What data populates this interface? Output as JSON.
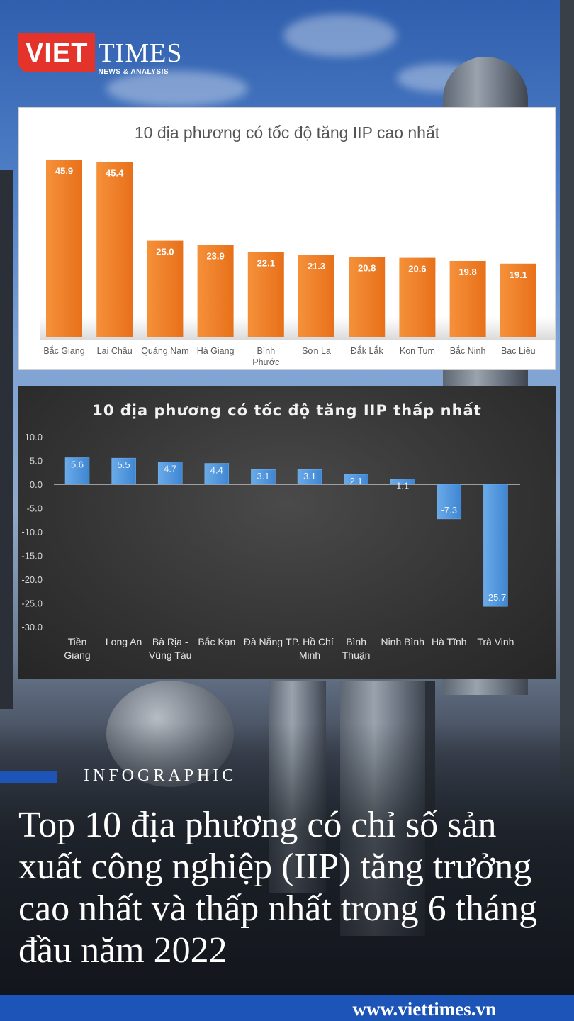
{
  "brand": {
    "logo_left": "VIET",
    "logo_right": "TIMES",
    "logo_sub": "NEWS & ANALYSIS",
    "accent": "#e3332a"
  },
  "kicker": "INFOGRAPHIC",
  "headline": "Top 10 địa phương có chỉ số sản xuất công nghiệp (IIP) tăng trưởng cao nhất và thấp nhất trong 6 tháng đầu năm 2022",
  "footer_url": "www.viettimes.vn",
  "chart_data": [
    {
      "type": "bar",
      "title": "10 địa phương có tốc độ tăng IIP cao nhất",
      "categories": [
        "Bắc Giang",
        "Lai Châu",
        "Quảng Nam",
        "Hà Giang",
        "Bình Phước",
        "Sơn La",
        "Đắk Lắk",
        "Kon Tum",
        "Bắc Ninh",
        "Bạc Liêu"
      ],
      "category_lines": [
        [
          "Bắc Giang"
        ],
        [
          "Lai Châu"
        ],
        [
          "Quảng Nam"
        ],
        [
          "Hà Giang"
        ],
        [
          "Bình",
          "Phước"
        ],
        [
          "Sơn La"
        ],
        [
          "Đắk Lắk"
        ],
        [
          "Kon Tum"
        ],
        [
          "Bắc Ninh"
        ],
        [
          "Bạc Liêu"
        ]
      ],
      "values": [
        45.9,
        45.4,
        25.0,
        23.9,
        22.1,
        21.3,
        20.8,
        20.6,
        19.8,
        19.1
      ],
      "labels": [
        "45.9",
        "45.4",
        "25.0",
        "23.9",
        "22.1",
        "21.3",
        "20.8",
        "20.6",
        "19.8",
        "19.1"
      ],
      "ylim": [
        0,
        46
      ],
      "grid": false,
      "color": "#f07b22"
    },
    {
      "type": "bar",
      "title": "10 địa phương có tốc độ tăng IIP thấp nhất",
      "categories": [
        "Tiền Giang",
        "Long An",
        "Bà Rịa - Vũng Tàu",
        "Bắc Kạn",
        "Đà Nẵng",
        "TP. Hồ Chí Minh",
        "Bình Thuận",
        "Ninh Bình",
        "Hà Tĩnh",
        "Trà Vinh"
      ],
      "category_lines": [
        [
          "Tiền",
          "Giang"
        ],
        [
          "Long An"
        ],
        [
          "Bà Rịa -",
          "Vũng Tàu"
        ],
        [
          "Bắc Kạn"
        ],
        [
          "Đà Nẵng"
        ],
        [
          "TP. Hồ Chí",
          "Minh"
        ],
        [
          "Bình",
          "Thuận"
        ],
        [
          "Ninh Bình"
        ],
        [
          "Hà Tĩnh"
        ],
        [
          "Trà Vinh"
        ]
      ],
      "values": [
        5.6,
        5.5,
        4.7,
        4.4,
        3.1,
        3.1,
        2.1,
        1.1,
        -7.3,
        -25.7
      ],
      "labels": [
        "5.6",
        "5.5",
        "4.7",
        "4.4",
        "3.1",
        "3.1",
        "2.1",
        "1.1",
        "-7.3",
        "-25.7"
      ],
      "ylim": [
        -30,
        10
      ],
      "yticks": [
        "10.0",
        "5.0",
        "0.0",
        "-5.0",
        "-10.0",
        "-15.0",
        "-20.0",
        "-25.0",
        "-30.0"
      ],
      "ytick_values": [
        10,
        5,
        0,
        -5,
        -10,
        -15,
        -20,
        -25,
        -30
      ],
      "grid": false,
      "color": "#4a90d9"
    }
  ]
}
